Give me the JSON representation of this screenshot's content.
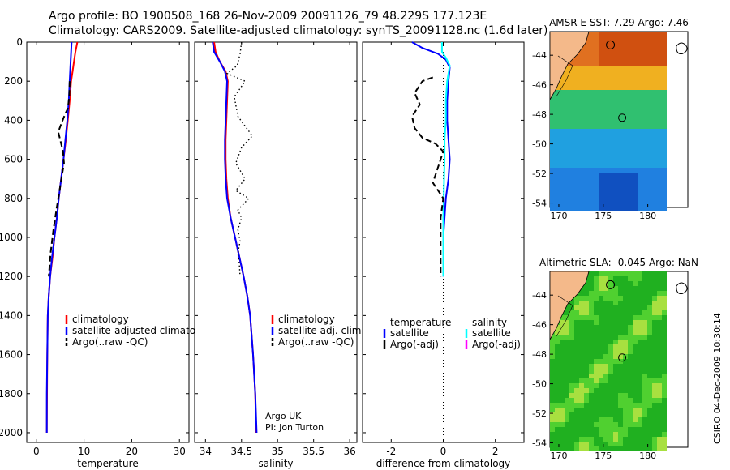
{
  "header": {
    "line1": "Argo profile: BO 1900508_168 26-Nov-2009 20091126_79 48.229S 177.123E",
    "line2": "Climatology: CARS2009. Satellite-adjusted climatology: synTS_20091128.nc (1.6d later)"
  },
  "credits": {
    "org": "Argo UK",
    "pi": "PI: Jon Turton",
    "stamp": "CSIRO 04-Dec-2009 10:30:14"
  },
  "colors": {
    "climatology": "#ff0000",
    "satellite": "#0000ff",
    "argo": "#000000",
    "satellite_salinity": "#00ffff",
    "argo_salinity": "#ff00ff",
    "land": "#f4b98a"
  },
  "chart_data": [
    {
      "type": "line",
      "id": "temp",
      "xlabel": "temperature",
      "ylabel": "",
      "xlim": [
        -2,
        32
      ],
      "ylim": [
        2050,
        0
      ],
      "xticks": [
        0,
        10,
        20,
        30
      ],
      "yticks": [
        0,
        200,
        400,
        600,
        800,
        1000,
        1200,
        1400,
        1600,
        1800,
        2000
      ],
      "legend": [
        "climatology",
        "satellite-adjusted climatology",
        "Argo(..raw -QC)"
      ],
      "series": [
        {
          "name": "climatology",
          "style": "solid",
          "color": "#ff0000",
          "x": [
            8.6,
            8.2,
            7.9,
            7.6,
            7.3,
            7.0,
            6.6,
            6.2,
            5.7,
            5.2,
            4.7,
            4.3,
            3.8,
            3.4,
            2.9,
            2.6,
            2.4,
            2.3,
            2.25,
            2.2
          ],
          "y": [
            0,
            50,
            100,
            150,
            200,
            300,
            400,
            500,
            600,
            700,
            800,
            900,
            1000,
            1100,
            1200,
            1300,
            1400,
            1600,
            1800,
            2000
          ]
        },
        {
          "name": "satellite-adjusted climatology",
          "style": "solid",
          "color": "#0000ff",
          "x": [
            7.4,
            7.3,
            7.2,
            7.1,
            7.0,
            6.8,
            6.5,
            6.1,
            5.7,
            5.2,
            4.7,
            4.3,
            3.8,
            3.3,
            2.9,
            2.6,
            2.4,
            2.3,
            2.2,
            2.2
          ],
          "y": [
            0,
            50,
            100,
            150,
            200,
            300,
            400,
            500,
            600,
            700,
            800,
            900,
            1000,
            1100,
            1200,
            1300,
            1400,
            1600,
            1800,
            2000
          ]
        },
        {
          "name": "Argo(..raw -QC)",
          "style": "dashed",
          "color": "#000000",
          "x": [
            7.0,
            6.9,
            6.6,
            6.0,
            5.2,
            4.6,
            5.0,
            5.6,
            5.8,
            5.4,
            5.0,
            4.6,
            4.2,
            3.6,
            3.0,
            2.6
          ],
          "y": [
            200,
            280,
            340,
            370,
            420,
            460,
            500,
            560,
            620,
            680,
            740,
            800,
            860,
            960,
            1080,
            1200
          ]
        }
      ]
    },
    {
      "type": "line",
      "id": "sal",
      "xlabel": "salinity",
      "ylabel": "",
      "xlim": [
        33.85,
        36.1
      ],
      "ylim": [
        2050,
        0
      ],
      "xticks": [
        34,
        34.5,
        35,
        35.5,
        36
      ],
      "yticks": [
        0,
        200,
        400,
        600,
        800,
        1000,
        1200,
        1400,
        1600,
        1800,
        2000
      ],
      "legend": [
        "climatology",
        "satellite adj. clim.",
        "Argo(..raw -QC)"
      ],
      "series": [
        {
          "name": "climatology",
          "style": "solid",
          "color": "#ff0000",
          "x": [
            34.12,
            34.14,
            34.2,
            34.28,
            34.31,
            34.3,
            34.29,
            34.28,
            34.28,
            34.29,
            34.31,
            34.35,
            34.41,
            34.47,
            34.53,
            34.58,
            34.62,
            34.66,
            34.69,
            34.7
          ],
          "y": [
            0,
            50,
            100,
            150,
            200,
            300,
            400,
            500,
            600,
            700,
            800,
            900,
            1000,
            1100,
            1200,
            1300,
            1400,
            1600,
            1800,
            2000
          ]
        },
        {
          "name": "satellite adj. clim.",
          "style": "solid",
          "color": "#0000ff",
          "x": [
            34.1,
            34.12,
            34.2,
            34.27,
            34.3,
            34.29,
            34.28,
            34.27,
            34.27,
            34.28,
            34.3,
            34.35,
            34.41,
            34.47,
            34.53,
            34.58,
            34.62,
            34.66,
            34.69,
            34.71
          ],
          "y": [
            0,
            50,
            100,
            150,
            200,
            300,
            400,
            500,
            600,
            700,
            800,
            900,
            1000,
            1100,
            1200,
            1300,
            1400,
            1600,
            1800,
            2000
          ]
        },
        {
          "name": "Argo(..raw -QC)",
          "style": "dotted",
          "color": "#000000",
          "x": [
            34.5,
            34.48,
            34.44,
            34.3,
            34.55,
            34.4,
            34.45,
            34.65,
            34.5,
            34.42,
            34.55,
            34.42,
            34.6,
            34.45,
            34.5,
            34.45,
            34.48,
            34.45,
            34.47,
            34.48
          ],
          "y": [
            0,
            60,
            120,
            160,
            200,
            280,
            380,
            480,
            540,
            620,
            700,
            760,
            800,
            860,
            900,
            960,
            1020,
            1080,
            1140,
            1200
          ]
        }
      ]
    },
    {
      "type": "line",
      "id": "diff",
      "xlabel": "difference from climatology",
      "ylabel": "",
      "xlim": [
        -3.1,
        3.1
      ],
      "ylim": [
        2050,
        0
      ],
      "xticks": [
        -2,
        0,
        2
      ],
      "yticks": [
        0,
        200,
        400,
        600,
        800,
        1000,
        1200,
        1400,
        1600,
        1800,
        2000
      ],
      "legend_temperature_title": "temperature",
      "legend_salinity_title": "salinity",
      "legend_temperature": [
        "satellite",
        "Argo(-adj)"
      ],
      "legend_salinity": [
        "satellite",
        "Argo(-adj)"
      ],
      "series": [
        {
          "name": "temperature satellite",
          "style": "solid",
          "color": "#0000ff",
          "x": [
            -1.2,
            -0.8,
            -0.2,
            0.1,
            0.25,
            0.2,
            0.15,
            0.15,
            0.2,
            0.25,
            0.2,
            0.1,
            0.05,
            0.0,
            0.0,
            0.0
          ],
          "y": [
            0,
            30,
            60,
            90,
            130,
            200,
            300,
            400,
            500,
            600,
            700,
            800,
            900,
            1000,
            1100,
            1200
          ]
        },
        {
          "name": "salinity satellite",
          "style": "solid",
          "color": "#00ffff",
          "x": [
            -0.05,
            -0.05,
            0.1,
            0.25,
            0.15,
            0.1,
            0.1,
            0.05,
            0.05,
            0.03,
            0.02,
            0.0,
            0.0,
            0.0,
            0.0
          ],
          "y": [
            0,
            50,
            80,
            120,
            200,
            300,
            400,
            500,
            600,
            700,
            800,
            900,
            1000,
            1100,
            1200
          ]
        },
        {
          "name": "temperature Argo(-adj)",
          "style": "dashed",
          "color": "#000000",
          "x": [
            -0.4,
            -0.8,
            -1.1,
            -0.9,
            -1.2,
            -1.1,
            -0.8,
            -0.3,
            0.0,
            -0.2,
            -0.4,
            -0.2,
            0.0,
            -0.1,
            -0.1,
            -0.1
          ],
          "y": [
            180,
            200,
            260,
            320,
            380,
            440,
            490,
            520,
            560,
            640,
            720,
            760,
            800,
            900,
            1050,
            1200
          ]
        }
      ]
    },
    {
      "type": "heatmap",
      "id": "sst",
      "title": "AMSR-E SST: 7.29 Argo: 7.46",
      "xlim": [
        169,
        184.5
      ],
      "ylim": [
        -54.3,
        -42.4
      ],
      "xticks": [
        170,
        175,
        180
      ],
      "yticks": [
        -44,
        -46,
        -48,
        -50,
        -52,
        -54
      ]
    },
    {
      "type": "heatmap",
      "id": "sla",
      "title": "Altimetric SLA: -0.045 Argo: NaN",
      "xlim": [
        169,
        184.5
      ],
      "ylim": [
        -54.3,
        -42.4
      ],
      "xticks": [
        170,
        175,
        180
      ],
      "yticks": [
        -44,
        -46,
        -48,
        -50,
        -52,
        -54
      ]
    }
  ]
}
